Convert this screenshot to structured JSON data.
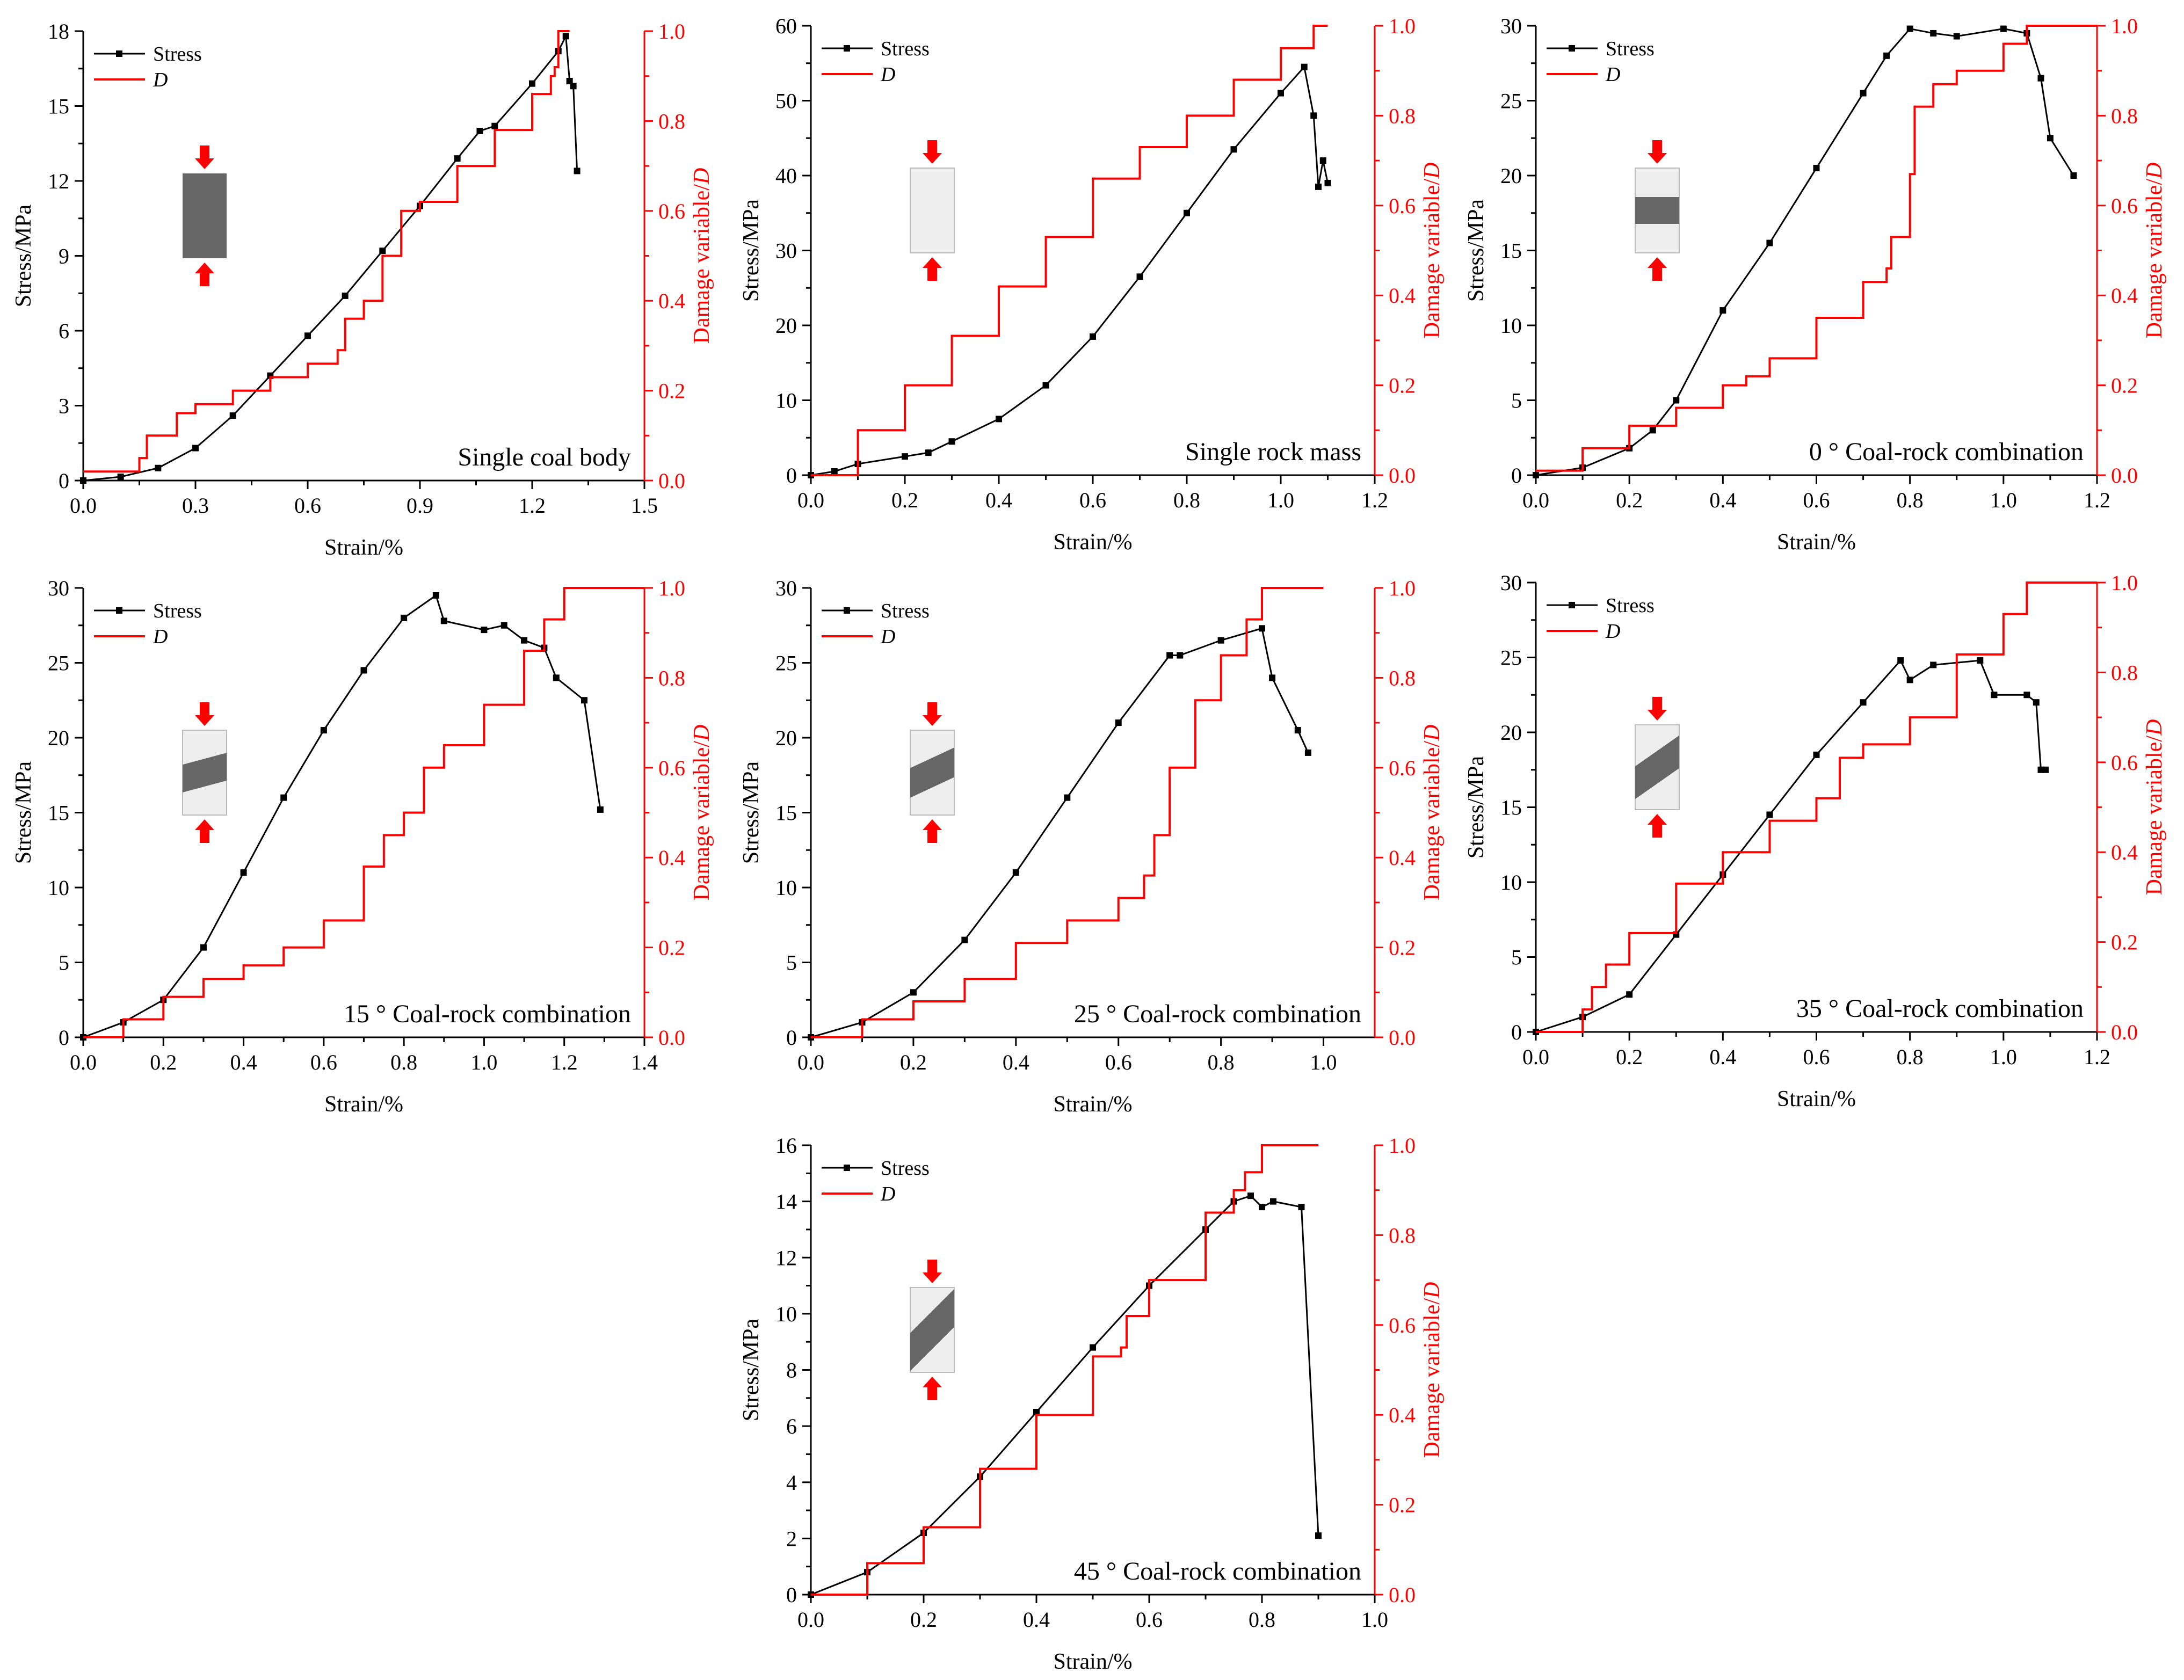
{
  "colors": {
    "stress": "#000000",
    "damage": "#ff0000",
    "coal": "#666666",
    "rock": "#eeeeee",
    "arrow": "#ff0000"
  },
  "chart_data": [
    {
      "type": "line",
      "title": "Single coal body",
      "inset": "coal",
      "xlabel": "Strain/%",
      "ylabel": "Stress/MPa",
      "y2label": "Damage variable/D",
      "xlim": [
        0,
        1.5
      ],
      "ylim": [
        0,
        18
      ],
      "y2lim": [
        0,
        1
      ],
      "xticks": [
        0.0,
        0.3,
        0.6,
        0.9,
        1.2,
        1.5
      ],
      "yticks": [
        0,
        3,
        6,
        9,
        12,
        15,
        18
      ],
      "y2ticks": [
        0.0,
        0.2,
        0.4,
        0.6,
        0.8,
        1.0
      ],
      "legend": [
        "Stress",
        "D"
      ],
      "series": [
        {
          "name": "Stress",
          "axis": "left",
          "x": [
            0,
            0.1,
            0.2,
            0.3,
            0.4,
            0.5,
            0.6,
            0.7,
            0.8,
            0.9,
            1.0,
            1.06,
            1.1,
            1.2,
            1.27,
            1.29,
            1.3,
            1.31,
            1.32
          ],
          "y": [
            0,
            0.15,
            0.5,
            1.3,
            2.6,
            4.2,
            5.8,
            7.4,
            9.2,
            11.0,
            12.9,
            14.0,
            14.2,
            15.9,
            17.2,
            17.8,
            16.0,
            15.8,
            12.4
          ]
        },
        {
          "name": "D",
          "axis": "right",
          "x": [
            0,
            0.15,
            0.17,
            0.25,
            0.3,
            0.4,
            0.5,
            0.6,
            0.68,
            0.7,
            0.75,
            0.8,
            0.85,
            0.9,
            1.0,
            1.1,
            1.2,
            1.25,
            1.26,
            1.27,
            1.3
          ],
          "y": [
            0.02,
            0.05,
            0.1,
            0.15,
            0.17,
            0.2,
            0.23,
            0.26,
            0.29,
            0.36,
            0.4,
            0.5,
            0.6,
            0.62,
            0.7,
            0.78,
            0.86,
            0.9,
            0.92,
            1.0,
            1.0
          ]
        }
      ]
    },
    {
      "type": "line",
      "title": "Single rock mass",
      "inset": "rock",
      "xlabel": "Strain/%",
      "ylabel": "Stress/MPa",
      "y2label": "Damage variable/D",
      "xlim": [
        0,
        1.2
      ],
      "ylim": [
        0,
        60
      ],
      "y2lim": [
        0,
        1
      ],
      "xticks": [
        0.0,
        0.2,
        0.4,
        0.6,
        0.8,
        1.0,
        1.2
      ],
      "yticks": [
        0,
        10,
        20,
        30,
        40,
        50,
        60
      ],
      "y2ticks": [
        0.0,
        0.2,
        0.4,
        0.6,
        0.8,
        1.0
      ],
      "legend": [
        "Stress",
        "D"
      ],
      "series": [
        {
          "name": "Stress",
          "axis": "left",
          "x": [
            0,
            0.05,
            0.1,
            0.2,
            0.25,
            0.3,
            0.4,
            0.5,
            0.6,
            0.7,
            0.8,
            0.9,
            1.0,
            1.05,
            1.07,
            1.08,
            1.09,
            1.1
          ],
          "y": [
            0,
            0.5,
            1.5,
            2.5,
            3,
            4.5,
            7.5,
            12,
            18.5,
            26.5,
            35,
            43.5,
            51,
            54.5,
            48,
            38.5,
            42,
            39
          ]
        },
        {
          "name": "D",
          "axis": "right",
          "x": [
            0,
            0.1,
            0.2,
            0.3,
            0.4,
            0.5,
            0.6,
            0.7,
            0.8,
            0.9,
            1.0,
            1.07,
            1.1
          ],
          "y": [
            0,
            0.1,
            0.2,
            0.31,
            0.42,
            0.53,
            0.66,
            0.73,
            0.8,
            0.88,
            0.95,
            1.0,
            1.0
          ]
        }
      ]
    },
    {
      "type": "line",
      "title": "0 ° Coal-rock combination",
      "inset": "0",
      "xlabel": "Strain/%",
      "ylabel": "Stress/MPa",
      "y2label": "Damage variable/D",
      "xlim": [
        0,
        1.2
      ],
      "ylim": [
        0,
        30
      ],
      "y2lim": [
        0,
        1
      ],
      "xticks": [
        0.0,
        0.2,
        0.4,
        0.6,
        0.8,
        1.0,
        1.2
      ],
      "yticks": [
        0,
        5,
        10,
        15,
        20,
        25,
        30
      ],
      "y2ticks": [
        0.0,
        0.2,
        0.4,
        0.6,
        0.8,
        1.0
      ],
      "legend": [
        "Stress",
        "D"
      ],
      "series": [
        {
          "name": "Stress",
          "axis": "left",
          "x": [
            0,
            0.1,
            0.2,
            0.25,
            0.3,
            0.4,
            0.5,
            0.6,
            0.7,
            0.75,
            0.8,
            0.85,
            0.9,
            1.0,
            1.05,
            1.08,
            1.1,
            1.15
          ],
          "y": [
            0,
            0.5,
            1.8,
            3,
            5,
            11,
            15.5,
            20.5,
            25.5,
            28,
            29.8,
            29.5,
            29.3,
            29.8,
            29.5,
            26.5,
            22.5,
            20
          ]
        },
        {
          "name": "D",
          "axis": "right",
          "x": [
            0,
            0.1,
            0.2,
            0.3,
            0.4,
            0.45,
            0.5,
            0.6,
            0.7,
            0.75,
            0.76,
            0.8,
            0.81,
            0.85,
            0.9,
            1.0,
            1.05,
            1.2
          ],
          "y": [
            0.01,
            0.06,
            0.11,
            0.15,
            0.2,
            0.22,
            0.26,
            0.35,
            0.43,
            0.46,
            0.53,
            0.67,
            0.82,
            0.87,
            0.9,
            0.96,
            1.0,
            1.0
          ]
        }
      ]
    },
    {
      "type": "line",
      "title": "15 ° Coal-rock combination",
      "inset": "15",
      "xlabel": "Strain/%",
      "ylabel": "Stress/MPa",
      "y2label": "Damage variable/D",
      "xlim": [
        0,
        1.4
      ],
      "ylim": [
        0,
        30
      ],
      "y2lim": [
        0,
        1
      ],
      "xticks": [
        0.0,
        0.2,
        0.4,
        0.6,
        0.8,
        1.0,
        1.2,
        1.4
      ],
      "yticks": [
        0,
        5,
        10,
        15,
        20,
        25,
        30
      ],
      "y2ticks": [
        0.0,
        0.2,
        0.4,
        0.6,
        0.8,
        1.0
      ],
      "legend": [
        "Stress",
        "D"
      ],
      "series": [
        {
          "name": "Stress",
          "axis": "left",
          "x": [
            0,
            0.1,
            0.2,
            0.3,
            0.4,
            0.5,
            0.6,
            0.7,
            0.8,
            0.88,
            0.9,
            1.0,
            1.05,
            1.1,
            1.15,
            1.18,
            1.25,
            1.29
          ],
          "y": [
            0,
            1,
            2.5,
            6,
            11,
            16,
            20.5,
            24.5,
            28,
            29.5,
            27.8,
            27.2,
            27.5,
            26.5,
            26,
            24,
            22.5,
            15.2
          ]
        },
        {
          "name": "D",
          "axis": "right",
          "x": [
            0,
            0.1,
            0.2,
            0.3,
            0.4,
            0.5,
            0.6,
            0.7,
            0.75,
            0.8,
            0.85,
            0.9,
            1.0,
            1.1,
            1.15,
            1.2,
            1.4
          ],
          "y": [
            0,
            0.04,
            0.09,
            0.13,
            0.16,
            0.2,
            0.26,
            0.38,
            0.45,
            0.5,
            0.6,
            0.65,
            0.74,
            0.86,
            0.93,
            1.0,
            1.0
          ]
        }
      ]
    },
    {
      "type": "line",
      "title": "25 ° Coal-rock combination",
      "inset": "25",
      "xlabel": "Strain/%",
      "ylabel": "Stress/MPa",
      "y2label": "Damage variable/D",
      "xlim": [
        0,
        1.1
      ],
      "ylim": [
        0,
        30
      ],
      "y2lim": [
        0,
        1
      ],
      "xticks": [
        0.0,
        0.2,
        0.4,
        0.6,
        0.8,
        1.0
      ],
      "yticks": [
        0,
        5,
        10,
        15,
        20,
        25,
        30
      ],
      "y2ticks": [
        0.0,
        0.2,
        0.4,
        0.6,
        0.8,
        1.0
      ],
      "legend": [
        "Stress",
        "D"
      ],
      "series": [
        {
          "name": "Stress",
          "axis": "left",
          "x": [
            0,
            0.1,
            0.2,
            0.3,
            0.4,
            0.5,
            0.6,
            0.7,
            0.72,
            0.8,
            0.88,
            0.9,
            0.95,
            0.97
          ],
          "y": [
            0,
            1,
            3,
            6.5,
            11,
            16,
            21,
            25.5,
            25.5,
            26.5,
            27.3,
            24,
            20.5,
            19
          ]
        },
        {
          "name": "D",
          "axis": "right",
          "x": [
            0,
            0.1,
            0.2,
            0.3,
            0.4,
            0.5,
            0.6,
            0.65,
            0.67,
            0.7,
            0.75,
            0.8,
            0.85,
            0.88,
            1.0
          ],
          "y": [
            0,
            0.04,
            0.08,
            0.13,
            0.21,
            0.26,
            0.31,
            0.36,
            0.45,
            0.6,
            0.75,
            0.85,
            0.93,
            1.0,
            1.0
          ]
        }
      ]
    },
    {
      "type": "line",
      "title": "35 ° Coal-rock combination",
      "inset": "35",
      "xlabel": "Strain/%",
      "ylabel": "Stress/MPa",
      "y2label": "Damage variable/D",
      "xlim": [
        0,
        1.2
      ],
      "ylim": [
        0,
        30
      ],
      "y2lim": [
        0,
        1
      ],
      "xticks": [
        0.0,
        0.2,
        0.4,
        0.6,
        0.8,
        1.0,
        1.2
      ],
      "yticks": [
        0,
        5,
        10,
        15,
        20,
        25,
        30
      ],
      "y2ticks": [
        0.0,
        0.2,
        0.4,
        0.6,
        0.8,
        1.0
      ],
      "legend": [
        "Stress",
        "D"
      ],
      "series": [
        {
          "name": "Stress",
          "axis": "left",
          "x": [
            0,
            0.1,
            0.2,
            0.3,
            0.4,
            0.5,
            0.6,
            0.7,
            0.78,
            0.8,
            0.85,
            0.95,
            0.98,
            1.05,
            1.07,
            1.08,
            1.09
          ],
          "y": [
            0,
            1,
            2.5,
            6.5,
            10.5,
            14.5,
            18.5,
            22,
            24.8,
            23.5,
            24.5,
            24.8,
            22.5,
            22.5,
            22,
            17.5,
            17.5
          ]
        },
        {
          "name": "D",
          "axis": "right",
          "x": [
            0,
            0.1,
            0.12,
            0.15,
            0.2,
            0.3,
            0.4,
            0.5,
            0.6,
            0.65,
            0.7,
            0.8,
            0.9,
            1.0,
            1.05,
            1.2
          ],
          "y": [
            0,
            0.05,
            0.1,
            0.15,
            0.22,
            0.33,
            0.4,
            0.47,
            0.52,
            0.61,
            0.64,
            0.7,
            0.84,
            0.93,
            1.0,
            1.0
          ]
        }
      ]
    },
    {
      "type": "line",
      "title": "45 ° Coal-rock combination",
      "inset": "45",
      "xlabel": "Strain/%",
      "ylabel": "Stress/MPa",
      "y2label": "Damage variable/D",
      "xlim": [
        0,
        1.0
      ],
      "ylim": [
        0,
        16
      ],
      "y2lim": [
        0,
        1
      ],
      "xticks": [
        0.0,
        0.2,
        0.4,
        0.6,
        0.8,
        1.0
      ],
      "yticks": [
        0,
        2,
        4,
        6,
        8,
        10,
        12,
        14,
        16
      ],
      "y2ticks": [
        0.0,
        0.2,
        0.4,
        0.6,
        0.8,
        1.0
      ],
      "legend": [
        "Stress",
        "D"
      ],
      "series": [
        {
          "name": "Stress",
          "axis": "left",
          "x": [
            0,
            0.1,
            0.2,
            0.3,
            0.4,
            0.5,
            0.6,
            0.7,
            0.75,
            0.78,
            0.8,
            0.82,
            0.87,
            0.9
          ],
          "y": [
            0,
            0.8,
            2.2,
            4.2,
            6.5,
            8.8,
            11,
            13,
            14,
            14.2,
            13.8,
            14,
            13.8,
            2.1
          ]
        },
        {
          "name": "D",
          "axis": "right",
          "x": [
            0,
            0.1,
            0.2,
            0.3,
            0.4,
            0.5,
            0.55,
            0.56,
            0.6,
            0.7,
            0.75,
            0.77,
            0.8,
            0.9
          ],
          "y": [
            0,
            0.07,
            0.15,
            0.28,
            0.4,
            0.53,
            0.55,
            0.62,
            0.7,
            0.85,
            0.9,
            0.94,
            1.0,
            1.0
          ]
        }
      ]
    }
  ]
}
